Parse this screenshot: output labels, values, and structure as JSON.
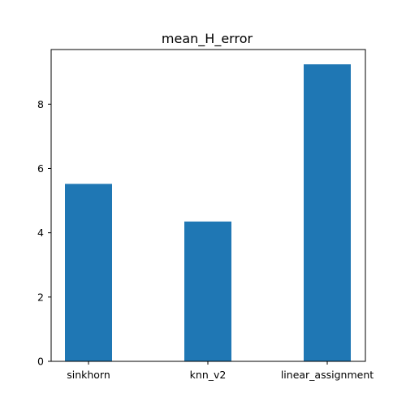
{
  "chart_data": {
    "type": "bar",
    "title": "mean_H_error",
    "xlabel": "",
    "ylabel": "",
    "categories": [
      "sinkhorn",
      "knn_v2",
      "linear_assignment"
    ],
    "values": [
      5.52,
      4.35,
      9.24
    ],
    "ylim": [
      0,
      9.7
    ],
    "yticks": [
      0,
      2,
      4,
      6,
      8
    ],
    "grid": false,
    "colors": {
      "bar": "#1f77b4"
    }
  }
}
